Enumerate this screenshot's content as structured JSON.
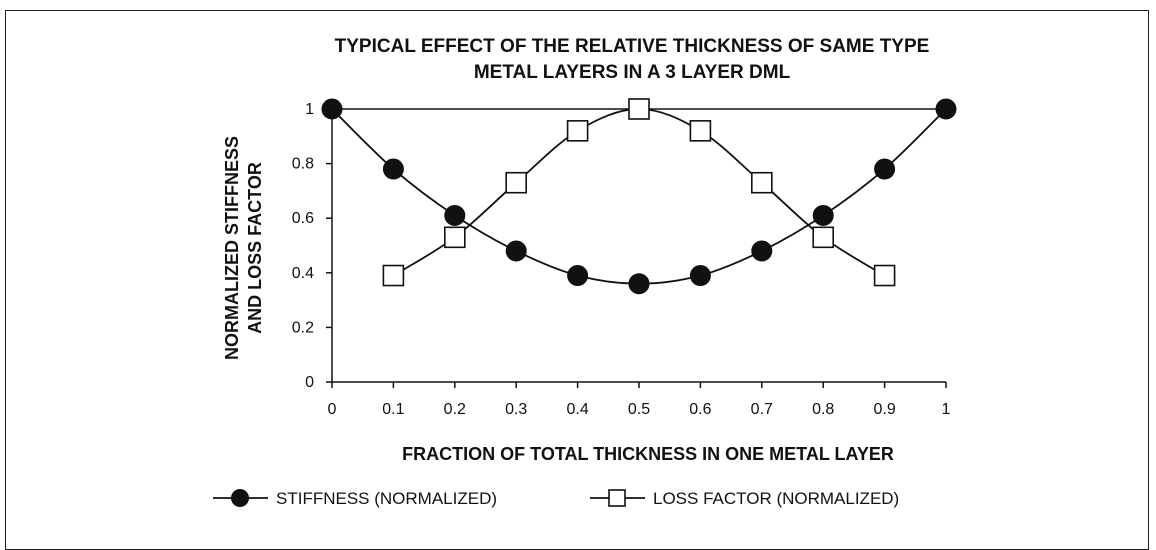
{
  "chart_data": {
    "type": "line",
    "title_line1": "TYPICAL EFFECT OF THE RELATIVE THICKNESS OF SAME TYPE",
    "title_line2": "METAL LAYERS IN A 3 LAYER DML",
    "xlabel": "FRACTION OF TOTAL THICKNESS IN ONE METAL LAYER",
    "ylabel_line1": "NORMALIZED STIFFNESS",
    "ylabel_line2": "AND LOSS FACTOR",
    "xlim": [
      0,
      1
    ],
    "ylim": [
      0,
      1
    ],
    "x_ticks": [
      "0",
      "0.1",
      "0.2",
      "0.3",
      "0.4",
      "0.5",
      "0.6",
      "0.7",
      "0.8",
      "0.9",
      "1"
    ],
    "y_ticks": [
      "0",
      "0.2",
      "0.4",
      "0.6",
      "0.8",
      "1"
    ],
    "grid": false,
    "legend_position": "bottom",
    "series": [
      {
        "name": "STIFFNESS (NORMALIZED)",
        "marker": "filled-circle",
        "color": "#111111",
        "x": [
          0,
          0.1,
          0.2,
          0.3,
          0.4,
          0.5,
          0.6,
          0.7,
          0.8,
          0.9,
          1
        ],
        "y": [
          1.0,
          0.78,
          0.61,
          0.48,
          0.39,
          0.36,
          0.39,
          0.48,
          0.61,
          0.78,
          1.0
        ]
      },
      {
        "name": "LOSS FACTOR (NORMALIZED)",
        "marker": "open-square",
        "color": "#111111",
        "x": [
          0.1,
          0.2,
          0.3,
          0.4,
          0.5,
          0.6,
          0.7,
          0.8,
          0.9
        ],
        "y": [
          0.39,
          0.53,
          0.73,
          0.92,
          1.0,
          0.92,
          0.73,
          0.53,
          0.39
        ]
      }
    ]
  }
}
